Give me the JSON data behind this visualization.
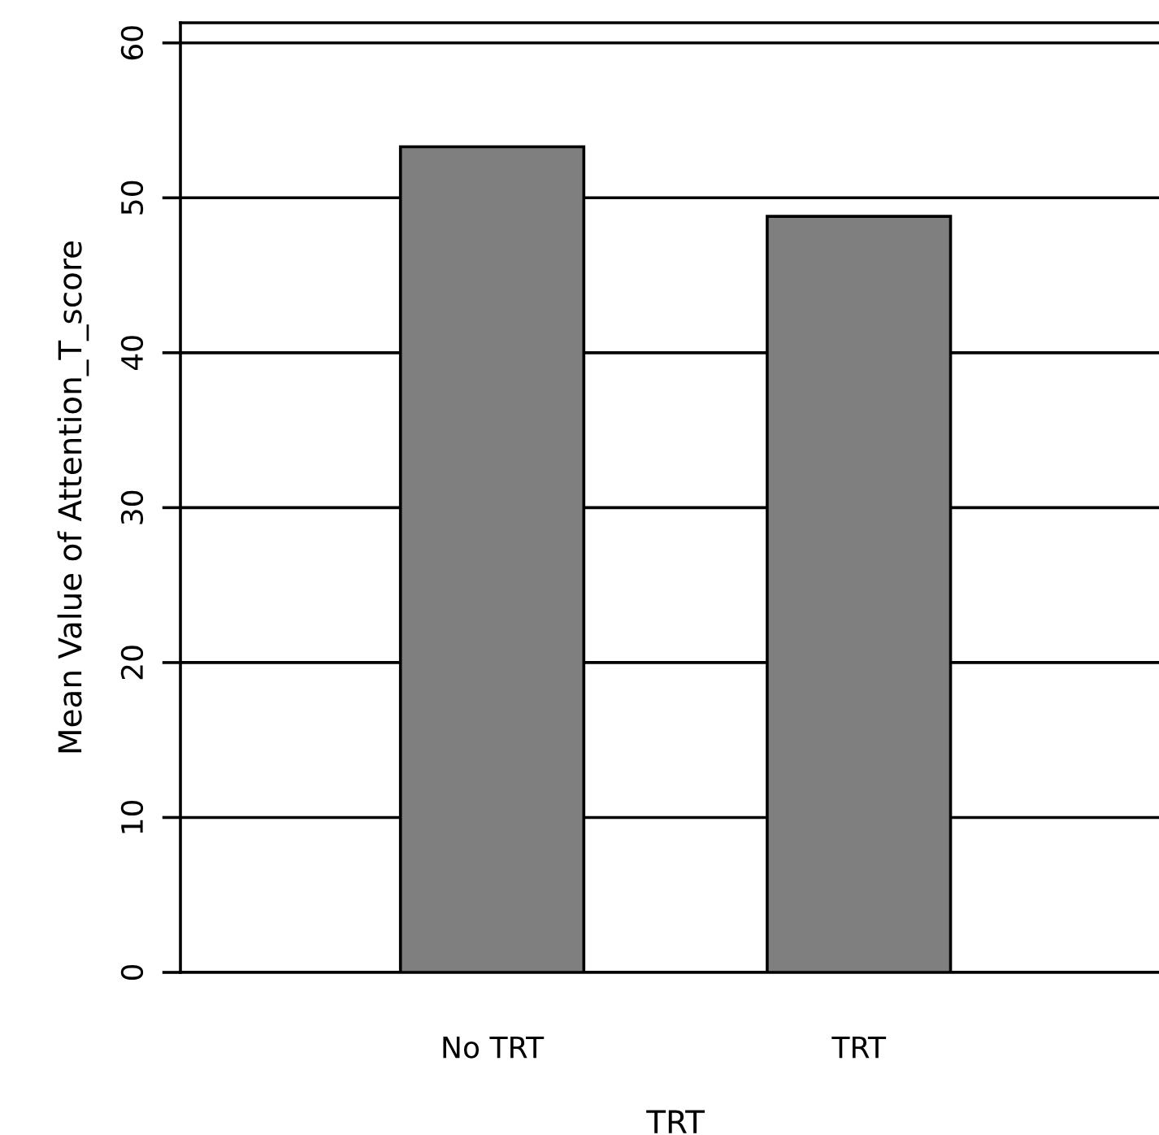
{
  "chart_data": {
    "type": "bar",
    "xlabel": "TRT",
    "ylabel": "Mean Value of Attention_T_score",
    "categories": [
      "No TRT",
      "TRT"
    ],
    "values": [
      53.3,
      48.8
    ],
    "color": "#7f7f7f",
    "ylim": [
      0,
      61.3
    ],
    "yticks": [
      0,
      10,
      20,
      30,
      40,
      50,
      60
    ],
    "grid": "y"
  }
}
